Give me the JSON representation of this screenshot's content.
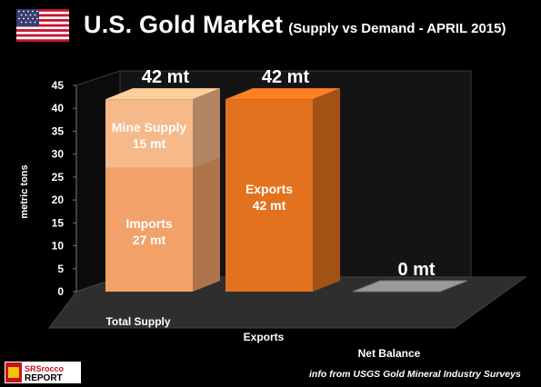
{
  "title": "U.S. Gold Market",
  "subtitle": "(Supply vs Demand - APRIL 2015)",
  "footer": "info from USGS Gold Mineral Industry Surveys",
  "logo_text": "SRSrocco REPORT",
  "chart_data": {
    "type": "bar",
    "stacked": true,
    "three_d": true,
    "categories": [
      "Total Supply",
      "Exports",
      "Net Balance"
    ],
    "ylabel": "metric tons",
    "ylim": [
      0,
      45
    ],
    "yticks": [
      0,
      5,
      10,
      15,
      20,
      25,
      30,
      35,
      40,
      45
    ],
    "grid": false,
    "legend": "none",
    "series": [
      {
        "name": "Imports",
        "label": "27 mt",
        "values": [
          27,
          null,
          null
        ],
        "color": "#f2a168"
      },
      {
        "name": "Mine Supply",
        "label": "15 mt",
        "values": [
          15,
          null,
          null
        ],
        "color": "#f6b98a"
      },
      {
        "name": "Exports",
        "label": "42 mt",
        "values": [
          null,
          42,
          null
        ],
        "color": "#e3721e"
      },
      {
        "name": "",
        "label": "",
        "values": [
          null,
          null,
          0
        ],
        "color": "#9a9a9a"
      }
    ],
    "totals": [
      "42 mt",
      "42 mt",
      "0 mt"
    ]
  }
}
